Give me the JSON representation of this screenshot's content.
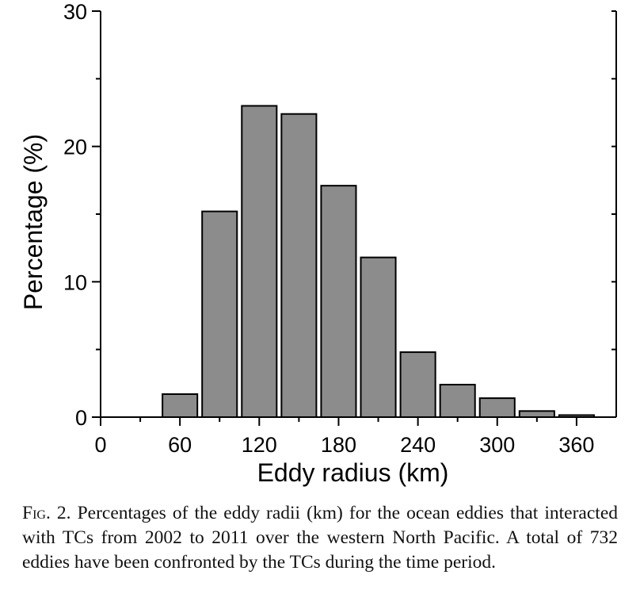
{
  "chart_data": {
    "type": "bar",
    "xlabel": "Eddy radius (km)",
    "ylabel": "Percentage (%)",
    "xlim": [
      0,
      390
    ],
    "ylim": [
      0,
      30
    ],
    "x_major_ticks": [
      0,
      60,
      120,
      180,
      240,
      300,
      360
    ],
    "x_minor_ticks": [
      30,
      90,
      150,
      210,
      270,
      330
    ],
    "y_major_ticks": [
      0,
      10,
      20,
      30
    ],
    "y_minor_ticks": [
      5,
      15,
      25
    ],
    "bin_width": 30,
    "bars": [
      {
        "x": 60,
        "value": 1.7
      },
      {
        "x": 90,
        "value": 15.2
      },
      {
        "x": 120,
        "value": 23.0
      },
      {
        "x": 150,
        "value": 22.4
      },
      {
        "x": 180,
        "value": 17.1
      },
      {
        "x": 210,
        "value": 11.8
      },
      {
        "x": 240,
        "value": 4.8
      },
      {
        "x": 270,
        "value": 2.4
      },
      {
        "x": 300,
        "value": 1.4
      },
      {
        "x": 330,
        "value": 0.45
      },
      {
        "x": 360,
        "value": 0.15
      }
    ],
    "bar_color": "#8c8c8c",
    "edge_color": "#000000",
    "grid": false
  },
  "caption": {
    "fig_label": "Fig. 2.",
    "text": "Percentages of the eddy radii (km) for the ocean eddies that interacted with TCs from 2002 to 2011 over the western North Pacific. A total of 732 eddies have been confronted by the TCs during the time period."
  }
}
